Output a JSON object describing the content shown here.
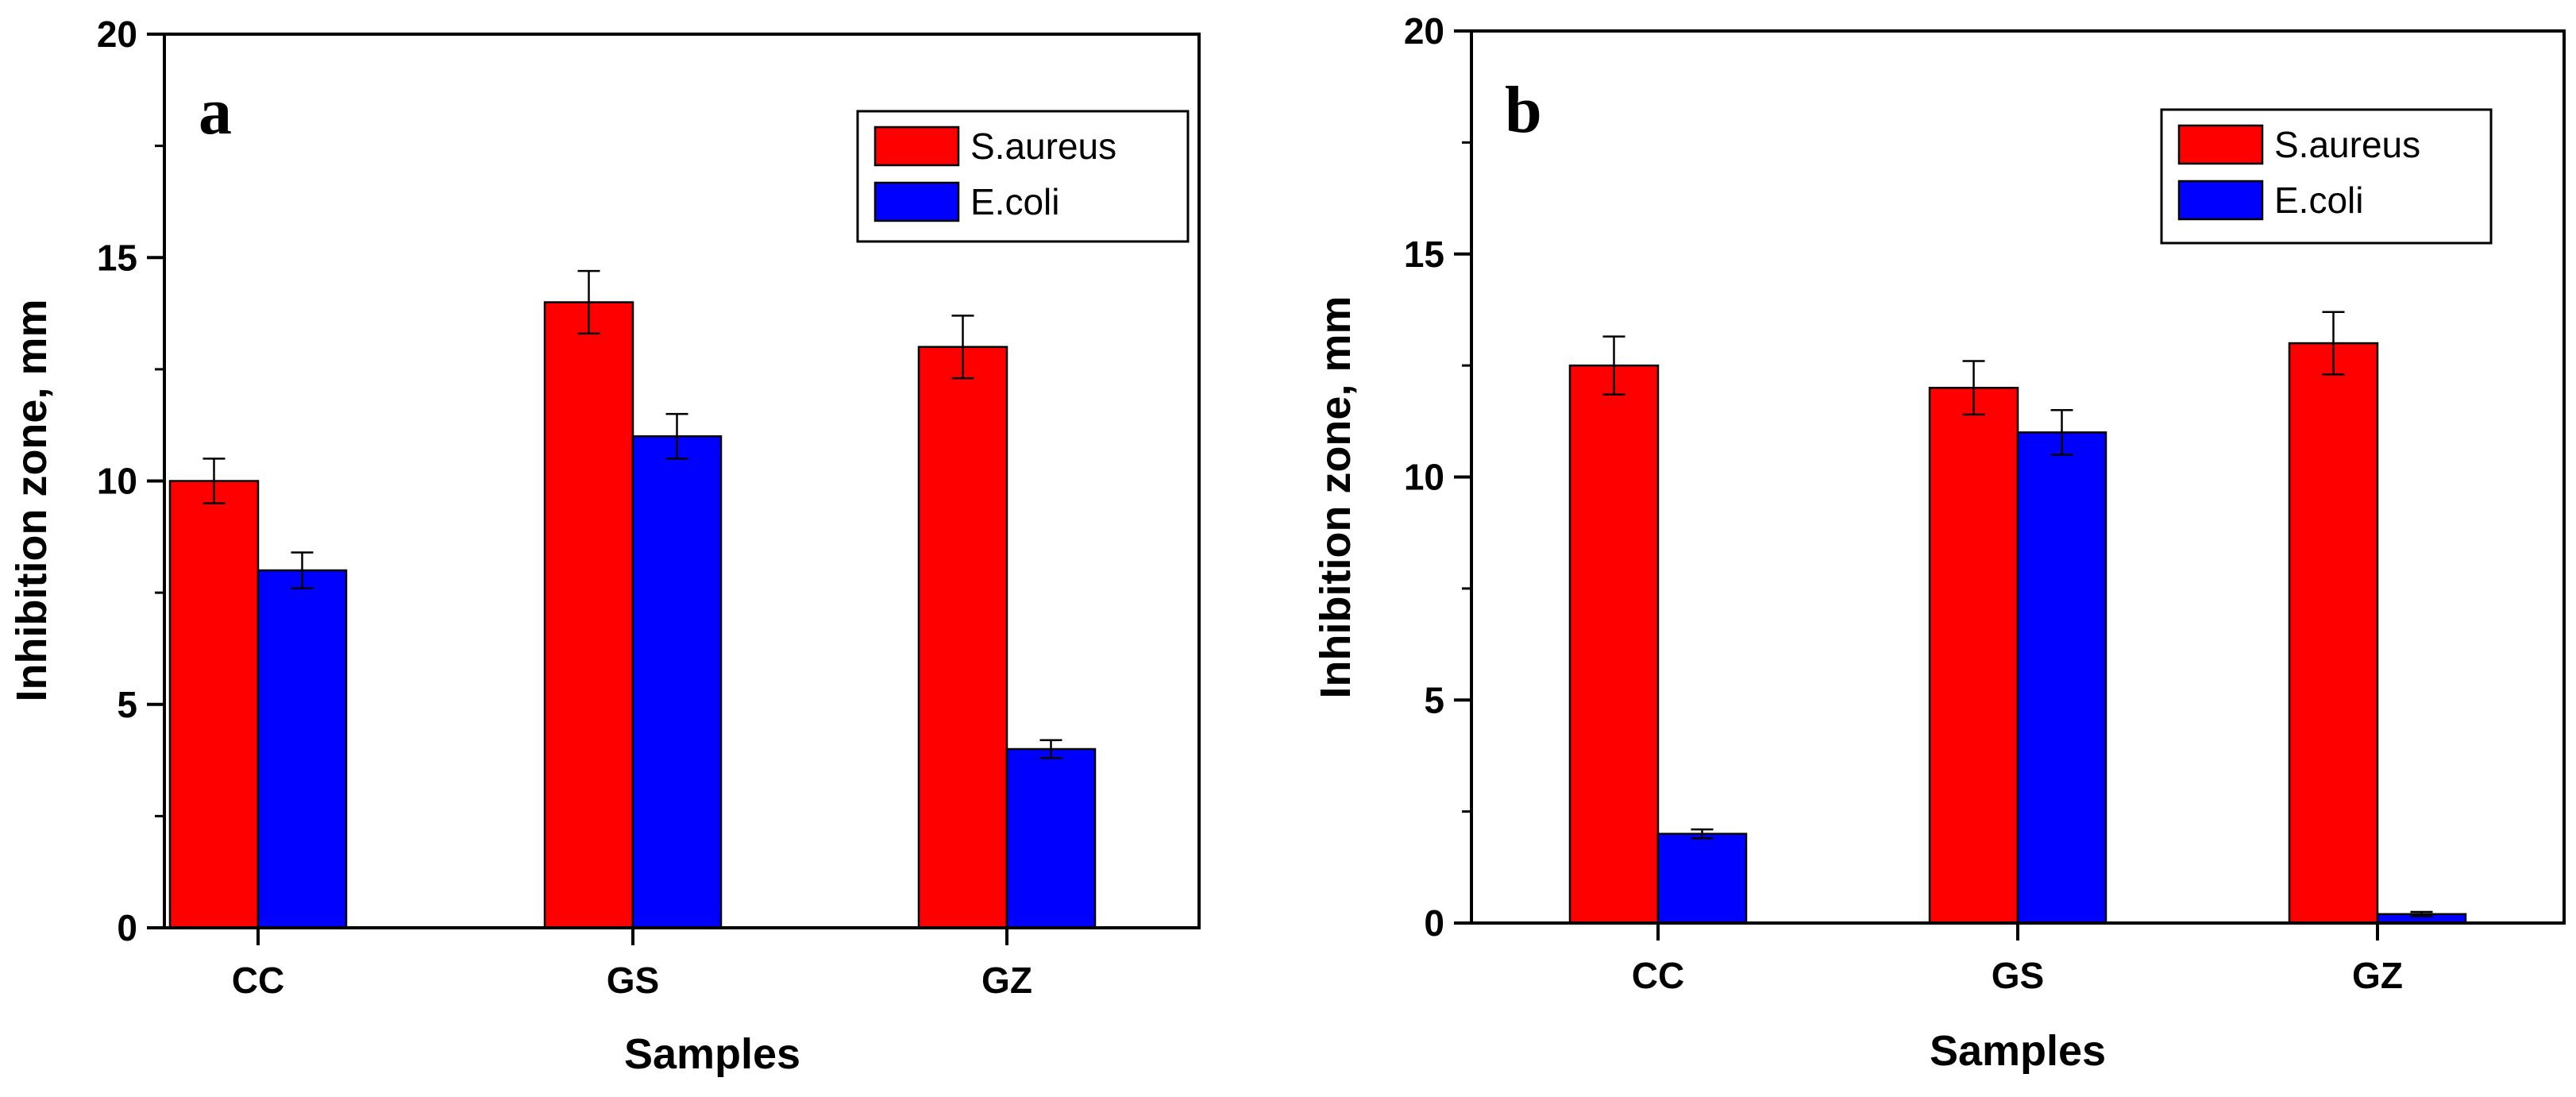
{
  "chart_data": [
    {
      "type": "bar",
      "panel_label": "a",
      "title": "",
      "xlabel": "Samples",
      "ylabel": "Inhibition zone, mm",
      "ylim": [
        0,
        20
      ],
      "yticks": [
        "0",
        "5",
        "10",
        "15",
        "20"
      ],
      "categories": [
        "CC",
        "GS",
        "GZ"
      ],
      "legend_position": "top-right",
      "series": [
        {
          "name": "S.aureus",
          "color": "#ff0000",
          "values": [
            10,
            14,
            13
          ],
          "errors": [
            0.5,
            0.7,
            0.7
          ]
        },
        {
          "name": "E.coli",
          "color": "#0000ff",
          "values": [
            8,
            11,
            4
          ],
          "errors": [
            0.4,
            0.5,
            0.2
          ]
        }
      ]
    },
    {
      "type": "bar",
      "panel_label": "b",
      "title": "",
      "xlabel": "Samples",
      "ylabel": "Inhibition zone, mm",
      "ylim": [
        0,
        20
      ],
      "yticks": [
        "0",
        "5",
        "10",
        "15",
        "20"
      ],
      "categories": [
        "CC",
        "GS",
        "GZ"
      ],
      "legend_position": "top-right",
      "series": [
        {
          "name": "S.aureus",
          "color": "#ff0000",
          "values": [
            12.5,
            12,
            13
          ],
          "errors": [
            0.65,
            0.6,
            0.7
          ]
        },
        {
          "name": "E.coli",
          "color": "#0000ff",
          "values": [
            2,
            11,
            0.2
          ],
          "errors": [
            0.1,
            0.5,
            0.05
          ]
        }
      ]
    }
  ]
}
